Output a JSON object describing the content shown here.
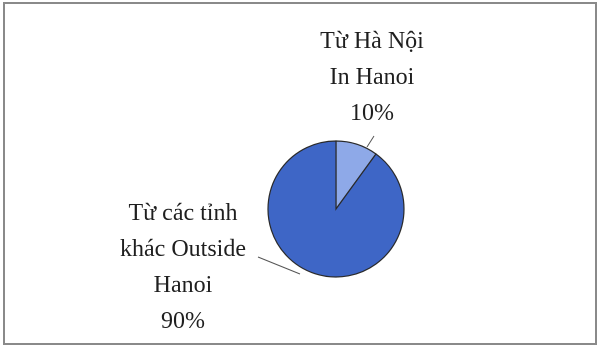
{
  "chart_data": {
    "type": "pie",
    "title": "",
    "slices": [
      {
        "label_lines": [
          "Từ Hà Nội",
          "In Hanoi"
        ],
        "value": 10,
        "value_label": "10%",
        "color": "#8EA9E8"
      },
      {
        "label_lines": [
          "Từ các tỉnh",
          "khác Outside",
          "Hanoi"
        ],
        "value": 90,
        "value_label": "90%",
        "color": "#3E66C6"
      }
    ],
    "border_color": "#8A8A8A"
  }
}
